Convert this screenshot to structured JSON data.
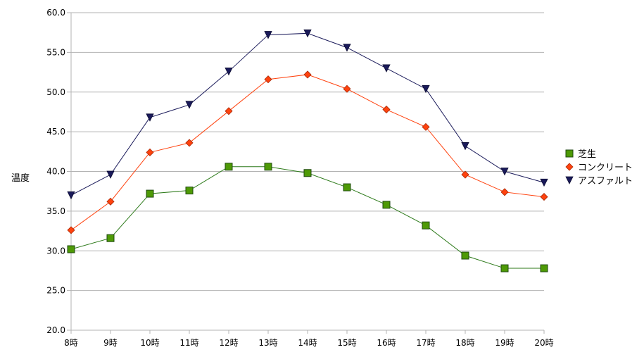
{
  "chart_data": {
    "type": "line",
    "title": "",
    "xlabel": "",
    "ylabel": "温度",
    "ylim": [
      20.0,
      60.0
    ],
    "yticks": [
      "20.0",
      "25.0",
      "30.0",
      "35.0",
      "40.0",
      "45.0",
      "50.0",
      "55.0",
      "60.0"
    ],
    "categories": [
      "8時",
      "9時",
      "10時",
      "11時",
      "12時",
      "13時",
      "14時",
      "15時",
      "16時",
      "17時",
      "18時",
      "19時",
      "20時"
    ],
    "grid": "horizontal",
    "legend_position": "right",
    "series": [
      {
        "name": "芝生",
        "marker": "square",
        "color": "#4e9a06",
        "line_color": "#2d7a1a",
        "values": [
          30.2,
          31.6,
          37.2,
          37.6,
          40.6,
          40.6,
          39.8,
          38.0,
          35.8,
          33.2,
          29.4,
          27.8,
          27.8
        ]
      },
      {
        "name": "コンクリート",
        "marker": "diamond",
        "color": "#ff420e",
        "line_color": "#ff420e",
        "values": [
          32.6,
          36.2,
          42.4,
          43.6,
          47.6,
          51.6,
          52.2,
          50.4,
          47.8,
          45.6,
          39.6,
          37.4,
          36.8
        ]
      },
      {
        "name": "アスファルト",
        "marker": "triangle-down",
        "color": "#1a1a5a",
        "line_color": "#1a1a5a",
        "values": [
          37.0,
          39.6,
          46.8,
          48.4,
          52.6,
          57.2,
          57.4,
          55.6,
          53.0,
          50.4,
          43.2,
          40.0,
          38.6
        ]
      }
    ]
  }
}
